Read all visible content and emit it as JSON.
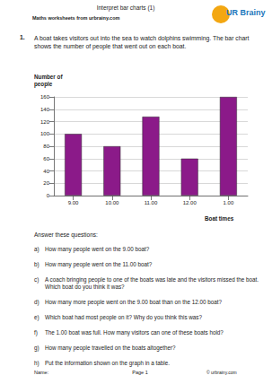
{
  "header": {
    "title": "Interpret bar charts (1)",
    "subtitle": "Maths worksheets from urbrainy.com",
    "logo": "UR Brainy"
  },
  "question": {
    "number": "1.",
    "text": "A boat takes visitors out into the sea to watch dolphins swimming. The bar chart shows the number of people that went out on each boat."
  },
  "chart_data": {
    "type": "bar",
    "y_label": "Number of people",
    "x_label": "Boat times",
    "categories": [
      "9.00",
      "10.00",
      "11.00",
      "12.00",
      "1.00"
    ],
    "values": [
      100,
      80,
      128,
      60,
      160
    ],
    "color": "#8b1a89",
    "ylim": [
      0,
      160
    ],
    "yticks": [
      0,
      20,
      40,
      60,
      80,
      100,
      120,
      140,
      160
    ],
    "grid": true
  },
  "instructions": "Answer these questions:",
  "questions": [
    {
      "label": "a)",
      "text": "How many people went on the  9.00 boat?"
    },
    {
      "label": "b)",
      "text": "How many people went on the 11.00 boat?"
    },
    {
      "label": "c)",
      "text": "A coach bringing people to one of the boats was late and the visitors missed the boat. Which boat do you think it was?"
    },
    {
      "label": "d)",
      "text": "How many more people went on the 9.00 boat than on the 12.00 boat?"
    },
    {
      "label": "e)",
      "text": "Which boat had most people on it?  Why do you think this was?"
    },
    {
      "label": "f)",
      "text": "The 1.00 boat was full. How many visitors can one of these boats hold?"
    },
    {
      "label": "g)",
      "text": "How many people travelled on the boats altogether?"
    },
    {
      "label": "h)",
      "text": "Put the information shown on the graph in a table."
    }
  ],
  "footer": {
    "name": "Name:",
    "page": "Page 1",
    "copyright": "© urbrainy.com"
  }
}
